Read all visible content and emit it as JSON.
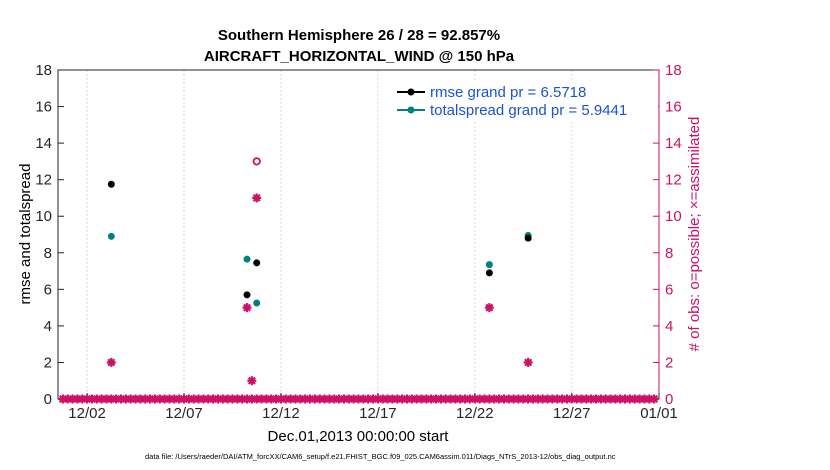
{
  "chart_data": {
    "type": "scatter",
    "title": "Southern Hemisphere 26 / 28 = 92.857%",
    "subtitle": "AIRCRAFT_HORIZONTAL_WIND @ 150 hPa",
    "xlabel": "Dec.01,2013 00:00:00 start",
    "ylabel_left": "rmse and totalspread",
    "ylabel_right": "# of obs: o=possible; ×=assimilated",
    "xlim": [
      0.5,
      31.5
    ],
    "ylim_left": [
      0,
      18
    ],
    "ylim_right": [
      0,
      18
    ],
    "x_ticks": [
      {
        "value": 2,
        "label": "12/02"
      },
      {
        "value": 7,
        "label": "12/07"
      },
      {
        "value": 12,
        "label": "12/12"
      },
      {
        "value": 17,
        "label": "12/17"
      },
      {
        "value": 22,
        "label": "12/22"
      },
      {
        "value": 27,
        "label": "12/27"
      },
      {
        "value": 32,
        "label": "01/01"
      }
    ],
    "y_ticks": [
      "0",
      "2",
      "4",
      "6",
      "8",
      "10",
      "12",
      "14",
      "16",
      "18"
    ],
    "series": [
      {
        "name": "rmse",
        "legend": "rmse grand pr = 6.5718",
        "color": "#000000",
        "points": [
          [
            3.25,
            11.75
          ],
          [
            10.25,
            5.7
          ],
          [
            10.75,
            7.45
          ],
          [
            22.75,
            6.9
          ],
          [
            24.75,
            8.8
          ]
        ]
      },
      {
        "name": "totalspread",
        "legend": "totalspread grand pr = 5.9441",
        "color": "#008080",
        "points": [
          [
            3.25,
            8.9
          ],
          [
            10.25,
            7.65
          ],
          [
            10.75,
            5.25
          ],
          [
            22.75,
            7.35
          ],
          [
            24.75,
            8.95
          ]
        ]
      },
      {
        "name": "possible",
        "color": "#cc1166",
        "points": [
          [
            10.75,
            13
          ]
        ]
      },
      {
        "name": "assimilated",
        "color": "#cc1166",
        "points": [
          [
            3.25,
            2
          ],
          [
            10.25,
            5
          ],
          [
            10.5,
            1
          ],
          [
            10.75,
            11
          ],
          [
            22.75,
            5
          ],
          [
            24.75,
            2
          ]
        ]
      }
    ],
    "zero_row": {
      "x_start": 0.75,
      "x_end": 31.25,
      "step": 0.25,
      "value": 0
    },
    "legend_position": "top-right"
  },
  "footer": "data file: /Users/raeder/DAI/ATM_forcXX/CAM6_setup/f.e21.FHIST_BGC.f09_025.CAM6assim.011/Diags_NTrS_2013-12/obs_diag_output.nc"
}
